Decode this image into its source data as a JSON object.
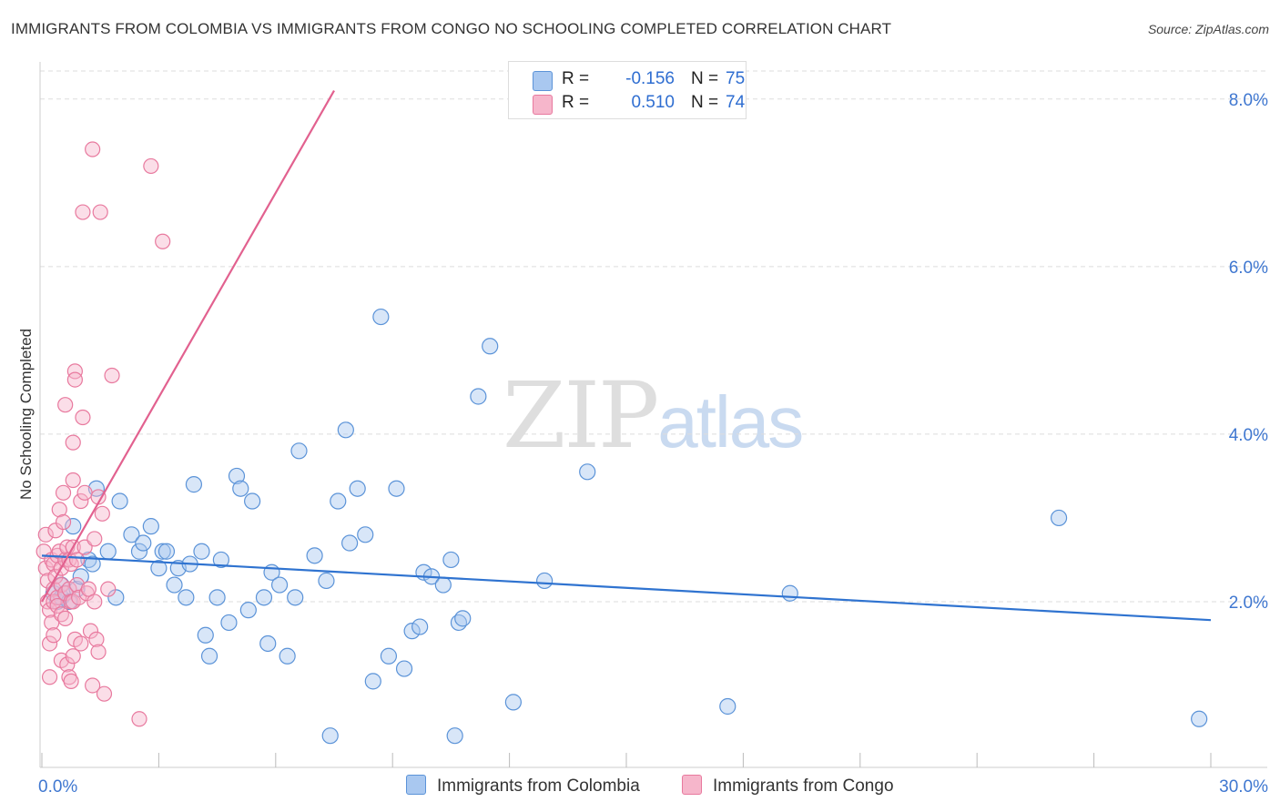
{
  "title": "IMMIGRANTS FROM COLOMBIA VS IMMIGRANTS FROM CONGO NO SCHOOLING COMPLETED CORRELATION CHART",
  "source": "Source: ZipAtlas.com",
  "watermark": {
    "zip": "ZIP",
    "atlas": "atlas"
  },
  "colors": {
    "colombia_fill": "#a9c8f0",
    "colombia_stroke": "#5b93d8",
    "colombia_line": "#2f73d0",
    "congo_fill": "#f6b6cb",
    "congo_stroke": "#e8799e",
    "congo_line": "#e2618f",
    "axis_label": "#3f77d0",
    "grid": "#dddddd"
  },
  "legend": {
    "colombia": {
      "r_label": "R =",
      "r_value": "-0.156",
      "n_label": "N =",
      "n_value": "75"
    },
    "congo": {
      "r_label": "R =",
      "r_value": "0.510",
      "n_label": "N =",
      "n_value": "74"
    }
  },
  "bottom_legend": {
    "colombia": "Immigrants from Colombia",
    "congo": "Immigrants from Congo"
  },
  "chart_data": {
    "type": "scatter",
    "title": "IMMIGRANTS FROM COLOMBIA VS IMMIGRANTS FROM CONGO NO SCHOOLING COMPLETED CORRELATION CHART",
    "xlabel": "",
    "ylabel": "No Schooling Completed",
    "xlim": [
      0,
      30
    ],
    "ylim": [
      0,
      8.4
    ],
    "x_tick_labels": [
      {
        "value": 0,
        "label": "0.0%"
      },
      {
        "value": 30,
        "label": "30.0%"
      }
    ],
    "y_tick_labels": [
      {
        "value": 2,
        "label": "2.0%"
      },
      {
        "value": 4,
        "label": "4.0%"
      },
      {
        "value": 6,
        "label": "6.0%"
      },
      {
        "value": 8,
        "label": "8.0%"
      }
    ],
    "series": [
      {
        "name": "Immigrants from Colombia",
        "r": -0.156,
        "n": 75,
        "trend": {
          "x": [
            0,
            30
          ],
          "y": [
            2.55,
            1.78
          ]
        },
        "points": [
          [
            0.3,
            2.1
          ],
          [
            0.4,
            2.0
          ],
          [
            0.5,
            2.2
          ],
          [
            0.5,
            2.05
          ],
          [
            0.6,
            2.1
          ],
          [
            0.7,
            2.0
          ],
          [
            0.8,
            2.9
          ],
          [
            0.9,
            2.15
          ],
          [
            1.0,
            2.3
          ],
          [
            1.2,
            2.5
          ],
          [
            1.3,
            2.45
          ],
          [
            1.4,
            3.35
          ],
          [
            1.7,
            2.6
          ],
          [
            1.9,
            2.05
          ],
          [
            2.0,
            3.2
          ],
          [
            2.3,
            2.8
          ],
          [
            2.5,
            2.6
          ],
          [
            2.6,
            2.7
          ],
          [
            2.8,
            2.9
          ],
          [
            3.0,
            2.4
          ],
          [
            3.1,
            2.6
          ],
          [
            3.2,
            2.6
          ],
          [
            3.4,
            2.2
          ],
          [
            3.5,
            2.4
          ],
          [
            3.7,
            2.05
          ],
          [
            3.8,
            2.45
          ],
          [
            3.9,
            3.4
          ],
          [
            4.1,
            2.6
          ],
          [
            4.2,
            1.6
          ],
          [
            4.3,
            1.35
          ],
          [
            4.5,
            2.05
          ],
          [
            4.6,
            2.5
          ],
          [
            4.8,
            1.75
          ],
          [
            5.0,
            3.5
          ],
          [
            5.1,
            3.35
          ],
          [
            5.3,
            1.9
          ],
          [
            5.4,
            3.2
          ],
          [
            5.7,
            2.05
          ],
          [
            5.8,
            1.5
          ],
          [
            5.9,
            2.35
          ],
          [
            6.1,
            2.2
          ],
          [
            6.3,
            1.35
          ],
          [
            6.5,
            2.05
          ],
          [
            6.6,
            3.8
          ],
          [
            7.0,
            2.55
          ],
          [
            7.3,
            2.25
          ],
          [
            7.4,
            0.4
          ],
          [
            7.6,
            3.2
          ],
          [
            7.8,
            4.05
          ],
          [
            7.9,
            2.7
          ],
          [
            8.1,
            3.35
          ],
          [
            8.3,
            2.8
          ],
          [
            8.5,
            1.05
          ],
          [
            8.7,
            5.4
          ],
          [
            8.9,
            1.35
          ],
          [
            9.1,
            3.35
          ],
          [
            9.3,
            1.2
          ],
          [
            9.5,
            1.65
          ],
          [
            9.7,
            1.7
          ],
          [
            9.8,
            2.35
          ],
          [
            10.0,
            2.3
          ],
          [
            10.3,
            2.2
          ],
          [
            10.5,
            2.5
          ],
          [
            10.6,
            0.4
          ],
          [
            10.7,
            1.75
          ],
          [
            10.8,
            1.8
          ],
          [
            11.2,
            4.45
          ],
          [
            11.5,
            5.05
          ],
          [
            12.1,
            0.8
          ],
          [
            12.9,
            2.25
          ],
          [
            14.0,
            3.55
          ],
          [
            17.6,
            0.75
          ],
          [
            19.2,
            2.1
          ],
          [
            26.1,
            3.0
          ],
          [
            29.7,
            0.6
          ]
        ]
      },
      {
        "name": "Immigrants from Congo",
        "r": 0.51,
        "n": 74,
        "trend": {
          "x": [
            0,
            7.5
          ],
          "y": [
            2.0,
            8.1
          ]
        },
        "points": [
          [
            0.05,
            2.6
          ],
          [
            0.1,
            2.8
          ],
          [
            0.1,
            2.4
          ],
          [
            0.15,
            2.25
          ],
          [
            0.15,
            2.0
          ],
          [
            0.2,
            1.9
          ],
          [
            0.2,
            1.5
          ],
          [
            0.2,
            1.1
          ],
          [
            0.25,
            2.5
          ],
          [
            0.25,
            1.75
          ],
          [
            0.3,
            2.45
          ],
          [
            0.3,
            2.15
          ],
          [
            0.3,
            2.0
          ],
          [
            0.3,
            1.6
          ],
          [
            0.35,
            2.85
          ],
          [
            0.35,
            2.3
          ],
          [
            0.4,
            2.55
          ],
          [
            0.4,
            2.05
          ],
          [
            0.4,
            1.95
          ],
          [
            0.45,
            3.1
          ],
          [
            0.45,
            2.6
          ],
          [
            0.5,
            2.4
          ],
          [
            0.5,
            2.2
          ],
          [
            0.5,
            1.85
          ],
          [
            0.5,
            1.3
          ],
          [
            0.55,
            3.3
          ],
          [
            0.55,
            2.95
          ],
          [
            0.6,
            4.35
          ],
          [
            0.6,
            2.5
          ],
          [
            0.6,
            2.1
          ],
          [
            0.6,
            1.8
          ],
          [
            0.65,
            2.65
          ],
          [
            0.65,
            1.25
          ],
          [
            0.7,
            2.5
          ],
          [
            0.7,
            2.15
          ],
          [
            0.7,
            1.1
          ],
          [
            0.75,
            2.45
          ],
          [
            0.75,
            2.0
          ],
          [
            0.75,
            1.05
          ],
          [
            0.8,
            3.9
          ],
          [
            0.8,
            3.45
          ],
          [
            0.8,
            2.65
          ],
          [
            0.8,
            2.0
          ],
          [
            0.8,
            1.35
          ],
          [
            0.85,
            4.75
          ],
          [
            0.85,
            4.65
          ],
          [
            0.85,
            1.55
          ],
          [
            0.9,
            2.5
          ],
          [
            0.9,
            2.2
          ],
          [
            0.95,
            2.05
          ],
          [
            1.0,
            3.2
          ],
          [
            1.0,
            1.5
          ],
          [
            1.05,
            6.65
          ],
          [
            1.05,
            4.2
          ],
          [
            1.1,
            3.3
          ],
          [
            1.1,
            2.65
          ],
          [
            1.15,
            2.1
          ],
          [
            1.2,
            2.15
          ],
          [
            1.25,
            1.65
          ],
          [
            1.3,
            1.0
          ],
          [
            1.3,
            7.4
          ],
          [
            1.35,
            2.75
          ],
          [
            1.35,
            2.0
          ],
          [
            1.4,
            1.55
          ],
          [
            1.45,
            1.4
          ],
          [
            1.45,
            3.25
          ],
          [
            1.5,
            6.65
          ],
          [
            1.55,
            3.05
          ],
          [
            1.6,
            0.9
          ],
          [
            1.7,
            2.15
          ],
          [
            1.8,
            4.7
          ],
          [
            2.5,
            0.6
          ],
          [
            2.8,
            7.2
          ],
          [
            3.1,
            6.3
          ]
        ]
      }
    ]
  }
}
